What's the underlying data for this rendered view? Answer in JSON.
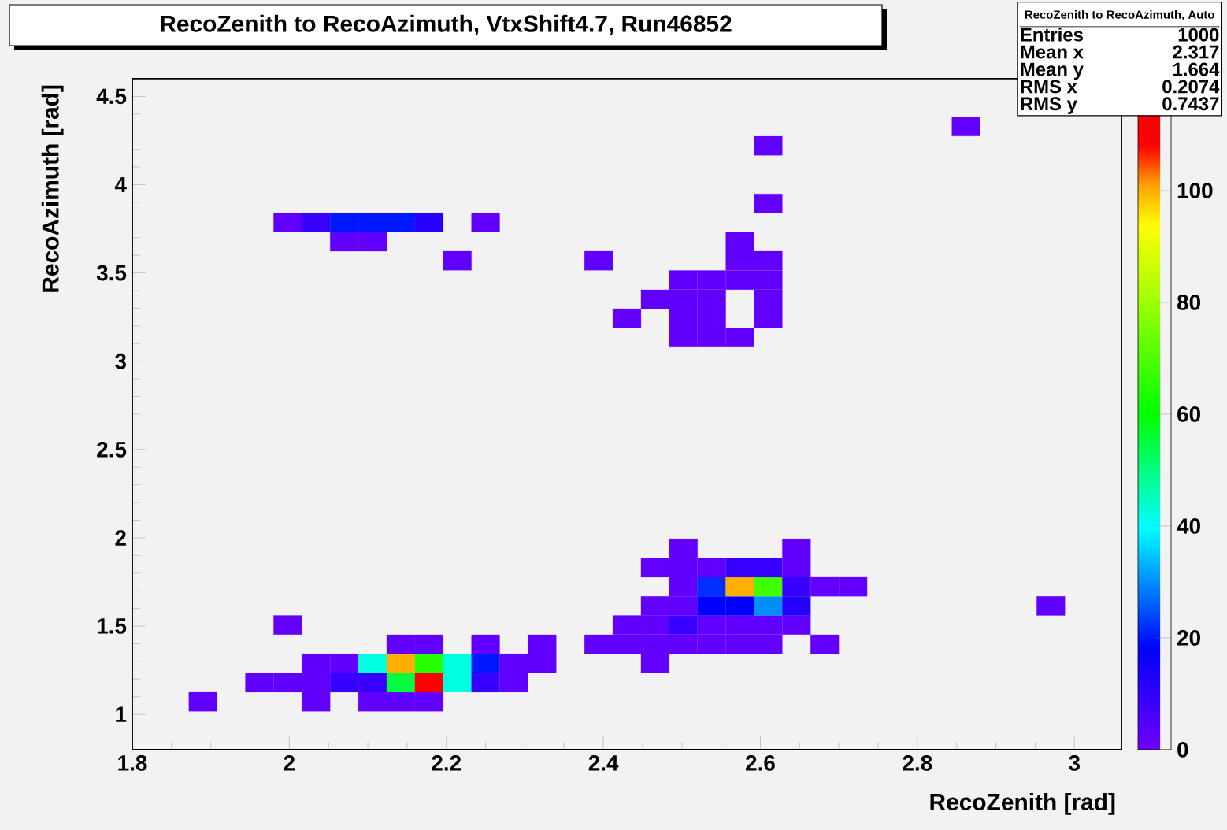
{
  "chart_data": {
    "type": "scatter",
    "title": "RecoZenith to RecoAzimuth, VtxShift4.7, Run46852",
    "xlabel": "RecoZenith [rad]",
    "ylabel": "RecoAzimuth [rad]",
    "marker": "square",
    "x": [
      1.89,
      2.034,
      2.106,
      2.142,
      2.178,
      1.962,
      1.998,
      2.034,
      2.07,
      2.106,
      2.142,
      2.178,
      2.214,
      2.25,
      2.286,
      2.034,
      2.07,
      2.106,
      2.142,
      2.178,
      2.214,
      2.25,
      2.286,
      2.322,
      2.466,
      2.142,
      2.178,
      2.25,
      2.322,
      2.394,
      2.43,
      2.466,
      2.502,
      2.538,
      2.574,
      2.61,
      2.682,
      1.998,
      2.43,
      2.466,
      2.502,
      2.538,
      2.574,
      2.61,
      2.646,
      2.466,
      2.502,
      2.538,
      2.574,
      2.61,
      2.646,
      2.97,
      2.502,
      2.538,
      2.574,
      2.61,
      2.646,
      2.682,
      2.718,
      2.466,
      2.502,
      2.538,
      2.574,
      2.61,
      2.646,
      2.502,
      2.646,
      2.502,
      2.538,
      2.574,
      2.43,
      2.502,
      2.538,
      2.61,
      2.466,
      2.502,
      2.538,
      2.61,
      2.502,
      2.538,
      2.574,
      2.61,
      2.214,
      2.394,
      2.574,
      2.61,
      2.07,
      2.106,
      2.574,
      1.998,
      2.034,
      2.07,
      2.106,
      2.142,
      2.178,
      2.25,
      2.61,
      2.61,
      2.862
    ],
    "values": [
      1.071,
      1.071,
      1.071,
      1.071,
      1.071,
      1.18,
      1.18,
      1.18,
      1.18,
      1.18,
      1.18,
      1.18,
      1.18,
      1.18,
      1.18,
      1.289,
      1.289,
      1.289,
      1.289,
      1.289,
      1.289,
      1.289,
      1.289,
      1.289,
      1.289,
      1.397,
      1.397,
      1.397,
      1.397,
      1.397,
      1.397,
      1.397,
      1.397,
      1.397,
      1.397,
      1.397,
      1.397,
      1.506,
      1.506,
      1.506,
      1.506,
      1.506,
      1.506,
      1.506,
      1.506,
      1.614,
      1.614,
      1.614,
      1.614,
      1.614,
      1.614,
      1.614,
      1.723,
      1.723,
      1.723,
      1.723,
      1.723,
      1.723,
      1.723,
      1.831,
      1.831,
      1.831,
      1.831,
      1.831,
      1.831,
      1.94,
      1.94,
      3.134,
      3.134,
      3.134,
      3.243,
      3.243,
      3.243,
      3.243,
      3.351,
      3.351,
      3.351,
      3.351,
      3.46,
      3.46,
      3.46,
      3.46,
      3.569,
      3.569,
      3.569,
      3.569,
      3.677,
      3.677,
      3.677,
      3.786,
      3.786,
      3.786,
      3.786,
      3.786,
      3.786,
      3.786,
      3.894,
      4.22,
      4.329
    ],
    "cvalues": [
      2,
      2,
      2,
      2,
      2,
      2,
      2,
      2,
      9,
      9,
      55,
      110,
      42,
      9,
      2,
      2,
      2,
      42,
      100,
      65,
      42,
      20,
      2,
      2,
      2,
      2,
      2,
      2,
      2,
      2,
      2,
      2,
      2,
      2,
      2,
      2,
      2,
      2,
      2,
      2,
      9,
      2,
      2,
      2,
      2,
      2,
      2,
      18,
      18,
      30,
      12,
      2,
      2,
      22,
      100,
      68,
      9,
      2,
      2,
      2,
      2,
      2,
      9,
      9,
      2,
      2,
      2,
      2,
      2,
      2,
      2,
      2,
      2,
      2,
      2,
      2,
      2,
      2,
      2,
      2,
      2,
      2,
      2,
      2,
      2,
      2,
      2,
      2,
      2,
      2,
      9,
      20,
      20,
      20,
      12,
      2,
      2,
      2,
      2
    ],
    "xlim": [
      1.8,
      3.06
    ],
    "xticks": [
      1.8,
      2,
      2.2,
      2.4,
      2.6,
      2.8,
      3
    ],
    "ylim": [
      0.8,
      4.6
    ],
    "yticks": [
      1,
      1.5,
      2,
      2.5,
      3,
      3.5,
      4,
      4.5
    ],
    "clim": [
      0,
      120
    ],
    "cticks": [
      0,
      20,
      40,
      60,
      80,
      100
    ],
    "annotations": [
      "RecoZenith to RecoAzimuth, Auto",
      "Entries",
      "1000",
      "Mean x",
      "2.317",
      "Mean y",
      "1.664",
      "RMS x",
      "0.2074",
      "RMS y",
      "0.7437"
    ]
  }
}
